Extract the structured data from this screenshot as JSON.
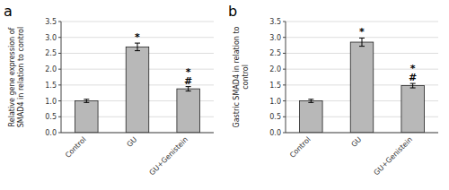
{
  "chart_data": [
    {
      "type": "bar",
      "title": "a",
      "categories": [
        "Control",
        "GU",
        "GU+Genistein"
      ],
      "values": [
        1.0,
        2.7,
        1.38
      ],
      "errors": [
        0.05,
        0.12,
        0.07
      ],
      "ylabel": "Relative gene expression of\nSMAD4 in relation to control",
      "ylim": [
        0,
        3.5
      ],
      "yticks": [
        {
          "value": 0,
          "label": "0.0"
        },
        0.5,
        {
          "value": 1.0,
          "label": "1.0"
        },
        1.5,
        {
          "value": 2.0,
          "label": "2.0"
        },
        2.5,
        {
          "value": 3.0,
          "label": "3.0"
        },
        3.5
      ],
      "color": "#b8b8b8",
      "grid": true,
      "annotations": [
        {
          "text": "*",
          "category": "GU"
        },
        {
          "text": "#",
          "category": "GU+Genistein"
        },
        {
          "text": "*",
          "category": "GU+Genistein"
        }
      ]
    },
    {
      "type": "bar",
      "title": "b",
      "categories": [
        "Control",
        "GU",
        "GU+Genistein"
      ],
      "values": [
        1.0,
        2.85,
        1.48
      ],
      "errors": [
        0.05,
        0.13,
        0.07
      ],
      "ylabel": "Gastric SMAD4 in relation to\ncontrol",
      "ylim": [
        0,
        3.5
      ],
      "yticks": [
        {
          "value": 0,
          "label": "0.0"
        },
        0.5,
        {
          "value": 1.0,
          "label": "1.0"
        },
        1.5,
        {
          "value": 2.0,
          "label": "2.0"
        },
        2.5,
        {
          "value": 3.0,
          "label": "3.0"
        },
        3.5
      ],
      "color": "#b8b8b8",
      "grid": true,
      "annotations": [
        {
          "text": "*",
          "category": "GU"
        },
        {
          "text": "#",
          "category": "GU+Genistein"
        },
        {
          "text": "*",
          "category": "GU+Genistein"
        }
      ]
    }
  ]
}
